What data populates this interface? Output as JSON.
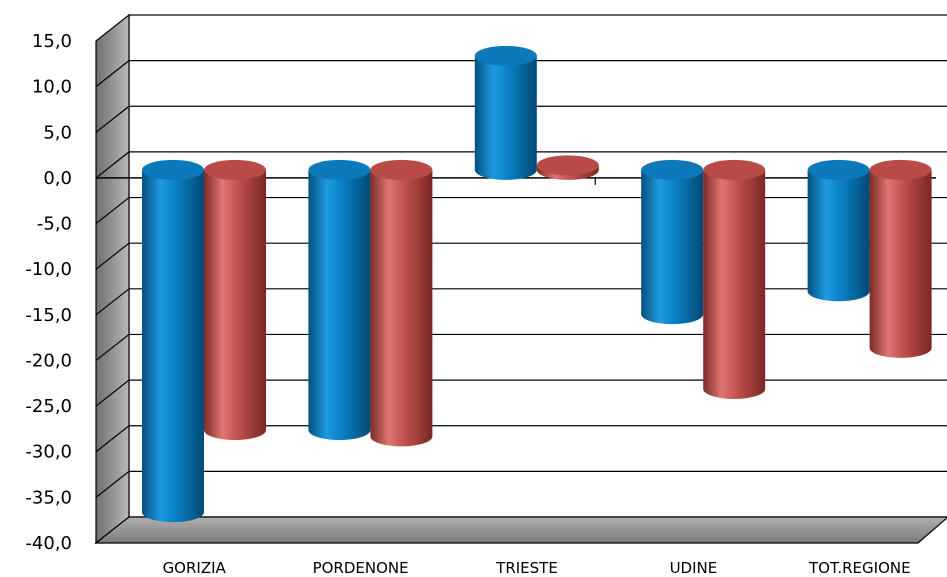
{
  "chart_data": {
    "type": "bar",
    "categories": [
      "GORIZIA",
      "PORDENONE",
      "TRIESTE",
      "UDINE",
      "TOT.REGIONE"
    ],
    "series": [
      {
        "values": [
          -37.5,
          -28.5,
          12.5,
          -15.8,
          -13.3
        ],
        "color": "#0a7fc4"
      },
      {
        "values": [
          -28.5,
          -29.2,
          0.5,
          -24.0,
          -19.5
        ],
        "color": "#c0504d"
      }
    ],
    "ylim": [
      -40,
      15
    ],
    "yticks": [
      "15,0",
      "10,0",
      "5,0",
      "0,0",
      "-5,0",
      "-10,0",
      "-15,0",
      "-20,0",
      "-25,0",
      "-30,0",
      "-35,0",
      "-40,0"
    ],
    "grid": true,
    "legend": "none"
  }
}
